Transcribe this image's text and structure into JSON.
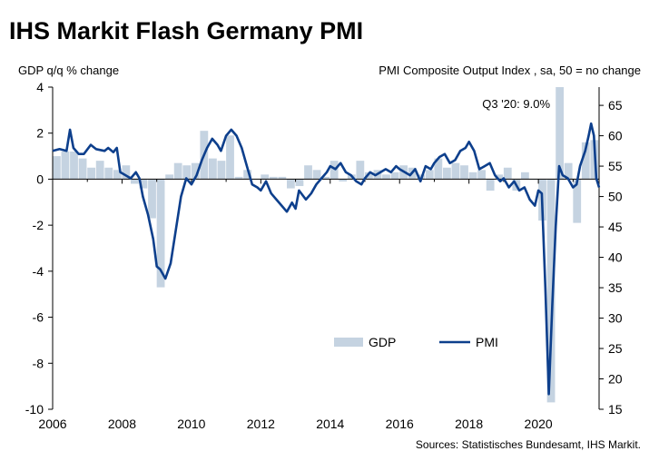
{
  "chart_data": {
    "type": "bar+line",
    "title": "IHS Markit Flash Germany PMI",
    "left_axis_label": "GDP q/q % change",
    "right_axis_label": "PMI Composite Output Index , sa, 50 = no change",
    "annotation": "Q3 '20: 9.0%",
    "source": "Sources: Statistisches Bundesamt, IHS Markit.",
    "legend": {
      "gdp": "GDP",
      "pmi": "PMI",
      "position": "bottom-right"
    },
    "colors": {
      "gdp": "#c5d3e1",
      "pmi": "#0d3f8c",
      "axis": "#000000"
    },
    "left_axis": {
      "min": -10,
      "max": 4,
      "ticks": [
        "4",
        "2",
        "0",
        "-2",
        "-4",
        "-6",
        "-8",
        "-10"
      ]
    },
    "right_axis": {
      "min": 15,
      "max": 68,
      "ticks": [
        "65",
        "60",
        "55",
        "50",
        "45",
        "40",
        "35",
        "30",
        "25",
        "20",
        "15"
      ]
    },
    "x_axis": {
      "min": 2006,
      "max": 2021.75,
      "ticks": [
        "2006",
        "2008",
        "2010",
        "2012",
        "2014",
        "2016",
        "2018",
        "2020"
      ]
    },
    "gdp_series": [
      {
        "x": 2006.0,
        "y": 1.0
      },
      {
        "x": 2006.25,
        "y": 1.2
      },
      {
        "x": 2006.5,
        "y": 1.2
      },
      {
        "x": 2006.75,
        "y": 0.9
      },
      {
        "x": 2007.0,
        "y": 0.5
      },
      {
        "x": 2007.25,
        "y": 0.8
      },
      {
        "x": 2007.5,
        "y": 0.5
      },
      {
        "x": 2007.75,
        "y": 0.4
      },
      {
        "x": 2008.0,
        "y": 0.6
      },
      {
        "x": 2008.25,
        "y": -0.2
      },
      {
        "x": 2008.5,
        "y": -0.4
      },
      {
        "x": 2008.75,
        "y": -1.7
      },
      {
        "x": 2009.0,
        "y": -4.7
      },
      {
        "x": 2009.25,
        "y": 0.2
      },
      {
        "x": 2009.5,
        "y": 0.7
      },
      {
        "x": 2009.75,
        "y": 0.6
      },
      {
        "x": 2010.0,
        "y": 0.7
      },
      {
        "x": 2010.25,
        "y": 2.1
      },
      {
        "x": 2010.5,
        "y": 0.9
      },
      {
        "x": 2010.75,
        "y": 0.8
      },
      {
        "x": 2011.0,
        "y": 1.9
      },
      {
        "x": 2011.25,
        "y": 0.1
      },
      {
        "x": 2011.5,
        "y": 0.4
      },
      {
        "x": 2011.75,
        "y": 0.0
      },
      {
        "x": 2012.0,
        "y": 0.2
      },
      {
        "x": 2012.25,
        "y": 0.1
      },
      {
        "x": 2012.5,
        "y": 0.1
      },
      {
        "x": 2012.75,
        "y": -0.4
      },
      {
        "x": 2013.0,
        "y": -0.3
      },
      {
        "x": 2013.25,
        "y": 0.6
      },
      {
        "x": 2013.5,
        "y": 0.4
      },
      {
        "x": 2013.75,
        "y": 0.1
      },
      {
        "x": 2014.0,
        "y": 0.8
      },
      {
        "x": 2014.25,
        "y": -0.1
      },
      {
        "x": 2014.5,
        "y": 0.2
      },
      {
        "x": 2014.75,
        "y": 0.8
      },
      {
        "x": 2015.0,
        "y": 0.3
      },
      {
        "x": 2015.25,
        "y": 0.4
      },
      {
        "x": 2015.5,
        "y": 0.2
      },
      {
        "x": 2015.75,
        "y": 0.3
      },
      {
        "x": 2016.0,
        "y": 0.6
      },
      {
        "x": 2016.25,
        "y": 0.5
      },
      {
        "x": 2016.5,
        "y": 0.2
      },
      {
        "x": 2016.75,
        "y": 0.4
      },
      {
        "x": 2017.0,
        "y": 0.9
      },
      {
        "x": 2017.25,
        "y": 0.5
      },
      {
        "x": 2017.5,
        "y": 0.7
      },
      {
        "x": 2017.75,
        "y": 0.6
      },
      {
        "x": 2018.0,
        "y": 0.3
      },
      {
        "x": 2018.25,
        "y": 0.4
      },
      {
        "x": 2018.5,
        "y": -0.5
      },
      {
        "x": 2018.75,
        "y": 0.2
      },
      {
        "x": 2019.0,
        "y": 0.5
      },
      {
        "x": 2019.25,
        "y": -0.5
      },
      {
        "x": 2019.5,
        "y": 0.3
      },
      {
        "x": 2019.75,
        "y": 0.0
      },
      {
        "x": 2020.0,
        "y": -1.8
      },
      {
        "x": 2020.25,
        "y": -9.7
      },
      {
        "x": 2020.5,
        "y": 9.0
      },
      {
        "x": 2020.75,
        "y": 0.7
      },
      {
        "x": 2021.0,
        "y": -1.9
      },
      {
        "x": 2021.25,
        "y": 1.6
      },
      {
        "x": 2021.5,
        "y": 1.7
      }
    ],
    "pmi_series": [
      {
        "x": 2006.0,
        "y": 57.5
      },
      {
        "x": 2006.2,
        "y": 57.8
      },
      {
        "x": 2006.4,
        "y": 57.5
      },
      {
        "x": 2006.5,
        "y": 61.0
      },
      {
        "x": 2006.6,
        "y": 58.0
      },
      {
        "x": 2006.75,
        "y": 57.0
      },
      {
        "x": 2006.9,
        "y": 57.0
      },
      {
        "x": 2007.1,
        "y": 58.5
      },
      {
        "x": 2007.25,
        "y": 57.8
      },
      {
        "x": 2007.5,
        "y": 57.5
      },
      {
        "x": 2007.6,
        "y": 58.0
      },
      {
        "x": 2007.75,
        "y": 57.3
      },
      {
        "x": 2007.85,
        "y": 58.0
      },
      {
        "x": 2007.95,
        "y": 54.0
      },
      {
        "x": 2008.1,
        "y": 53.5
      },
      {
        "x": 2008.25,
        "y": 53.0
      },
      {
        "x": 2008.4,
        "y": 54.0
      },
      {
        "x": 2008.5,
        "y": 53.0
      },
      {
        "x": 2008.6,
        "y": 50.0
      },
      {
        "x": 2008.75,
        "y": 47.0
      },
      {
        "x": 2008.9,
        "y": 43.0
      },
      {
        "x": 2009.0,
        "y": 38.5
      },
      {
        "x": 2009.1,
        "y": 38.0
      },
      {
        "x": 2009.25,
        "y": 36.5
      },
      {
        "x": 2009.4,
        "y": 39.0
      },
      {
        "x": 2009.55,
        "y": 44.5
      },
      {
        "x": 2009.7,
        "y": 50.0
      },
      {
        "x": 2009.85,
        "y": 53.0
      },
      {
        "x": 2010.0,
        "y": 52.0
      },
      {
        "x": 2010.15,
        "y": 53.5
      },
      {
        "x": 2010.3,
        "y": 56.0
      },
      {
        "x": 2010.45,
        "y": 58.0
      },
      {
        "x": 2010.6,
        "y": 59.5
      },
      {
        "x": 2010.75,
        "y": 58.5
      },
      {
        "x": 2010.85,
        "y": 57.5
      },
      {
        "x": 2011.0,
        "y": 60.0
      },
      {
        "x": 2011.15,
        "y": 61.0
      },
      {
        "x": 2011.3,
        "y": 60.0
      },
      {
        "x": 2011.45,
        "y": 58.0
      },
      {
        "x": 2011.6,
        "y": 55.0
      },
      {
        "x": 2011.75,
        "y": 52.0
      },
      {
        "x": 2011.9,
        "y": 51.5
      },
      {
        "x": 2012.0,
        "y": 51.0
      },
      {
        "x": 2012.15,
        "y": 52.5
      },
      {
        "x": 2012.3,
        "y": 50.5
      },
      {
        "x": 2012.45,
        "y": 49.5
      },
      {
        "x": 2012.6,
        "y": 48.5
      },
      {
        "x": 2012.75,
        "y": 47.5
      },
      {
        "x": 2012.9,
        "y": 49.0
      },
      {
        "x": 2013.0,
        "y": 48.0
      },
      {
        "x": 2013.1,
        "y": 51.0
      },
      {
        "x": 2013.3,
        "y": 49.5
      },
      {
        "x": 2013.45,
        "y": 50.5
      },
      {
        "x": 2013.6,
        "y": 52.0
      },
      {
        "x": 2013.75,
        "y": 53.0
      },
      {
        "x": 2013.9,
        "y": 54.0
      },
      {
        "x": 2014.0,
        "y": 55.0
      },
      {
        "x": 2014.15,
        "y": 54.5
      },
      {
        "x": 2014.3,
        "y": 55.5
      },
      {
        "x": 2014.45,
        "y": 54.0
      },
      {
        "x": 2014.6,
        "y": 53.5
      },
      {
        "x": 2014.75,
        "y": 52.5
      },
      {
        "x": 2014.9,
        "y": 52.0
      },
      {
        "x": 2015.0,
        "y": 53.0
      },
      {
        "x": 2015.15,
        "y": 54.0
      },
      {
        "x": 2015.3,
        "y": 53.5
      },
      {
        "x": 2015.45,
        "y": 54.0
      },
      {
        "x": 2015.6,
        "y": 54.5
      },
      {
        "x": 2015.75,
        "y": 54.0
      },
      {
        "x": 2015.9,
        "y": 55.0
      },
      {
        "x": 2016.0,
        "y": 54.5
      },
      {
        "x": 2016.15,
        "y": 54.0
      },
      {
        "x": 2016.3,
        "y": 53.5
      },
      {
        "x": 2016.45,
        "y": 54.5
      },
      {
        "x": 2016.6,
        "y": 52.5
      },
      {
        "x": 2016.75,
        "y": 55.0
      },
      {
        "x": 2016.9,
        "y": 54.5
      },
      {
        "x": 2017.0,
        "y": 55.5
      },
      {
        "x": 2017.15,
        "y": 56.5
      },
      {
        "x": 2017.3,
        "y": 57.0
      },
      {
        "x": 2017.45,
        "y": 55.5
      },
      {
        "x": 2017.6,
        "y": 56.0
      },
      {
        "x": 2017.75,
        "y": 57.5
      },
      {
        "x": 2017.9,
        "y": 58.0
      },
      {
        "x": 2018.0,
        "y": 59.0
      },
      {
        "x": 2018.15,
        "y": 57.5
      },
      {
        "x": 2018.3,
        "y": 54.5
      },
      {
        "x": 2018.45,
        "y": 55.0
      },
      {
        "x": 2018.6,
        "y": 55.5
      },
      {
        "x": 2018.75,
        "y": 53.5
      },
      {
        "x": 2018.9,
        "y": 52.5
      },
      {
        "x": 2019.0,
        "y": 53.0
      },
      {
        "x": 2019.15,
        "y": 51.5
      },
      {
        "x": 2019.3,
        "y": 52.5
      },
      {
        "x": 2019.45,
        "y": 51.0
      },
      {
        "x": 2019.6,
        "y": 51.5
      },
      {
        "x": 2019.75,
        "y": 49.5
      },
      {
        "x": 2019.9,
        "y": 48.5
      },
      {
        "x": 2020.0,
        "y": 51.0
      },
      {
        "x": 2020.1,
        "y": 50.5
      },
      {
        "x": 2020.2,
        "y": 35.0
      },
      {
        "x": 2020.3,
        "y": 17.5
      },
      {
        "x": 2020.4,
        "y": 32.0
      },
      {
        "x": 2020.5,
        "y": 45.0
      },
      {
        "x": 2020.6,
        "y": 55.0
      },
      {
        "x": 2020.7,
        "y": 53.5
      },
      {
        "x": 2020.85,
        "y": 53.0
      },
      {
        "x": 2021.0,
        "y": 51.5
      },
      {
        "x": 2021.1,
        "y": 52.0
      },
      {
        "x": 2021.2,
        "y": 55.0
      },
      {
        "x": 2021.35,
        "y": 57.5
      },
      {
        "x": 2021.45,
        "y": 60.0
      },
      {
        "x": 2021.52,
        "y": 62.0
      },
      {
        "x": 2021.6,
        "y": 60.0
      },
      {
        "x": 2021.67,
        "y": 53.0
      },
      {
        "x": 2021.75,
        "y": 51.5
      }
    ]
  }
}
